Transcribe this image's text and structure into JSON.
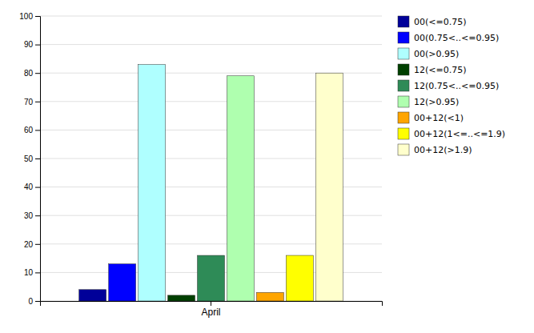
{
  "chart_data": {
    "type": "bar",
    "categories": [
      "April"
    ],
    "series": [
      {
        "name": "00(<=0.75)",
        "color": "#000099",
        "values": [
          4
        ]
      },
      {
        "name": "00(0.75<..<=0.95)",
        "color": "#0000FF",
        "values": [
          13
        ]
      },
      {
        "name": "00(>0.95)",
        "color": "#AFFFFF",
        "values": [
          83
        ]
      },
      {
        "name": "12(<=0.75)",
        "color": "#004000",
        "values": [
          2
        ]
      },
      {
        "name": "12(0.75<..<=0.95)",
        "color": "#2E8B57",
        "values": [
          16
        ]
      },
      {
        "name": "12(>0.95)",
        "color": "#AFFFAF",
        "values": [
          79
        ]
      },
      {
        "name": "00+12(<1)",
        "color": "#FFA500",
        "values": [
          3
        ]
      },
      {
        "name": "00+12(1<=..<=1.9)",
        "color": "#FFFF00",
        "values": [
          16
        ]
      },
      {
        "name": "00+12(>1.9)",
        "color": "#FFFFCC",
        "values": [
          80
        ]
      }
    ],
    "ylim": [
      0,
      100
    ],
    "yticks": [
      0,
      10,
      20,
      30,
      40,
      50,
      60,
      70,
      80,
      90,
      100
    ],
    "grid": true,
    "legend": "right"
  }
}
